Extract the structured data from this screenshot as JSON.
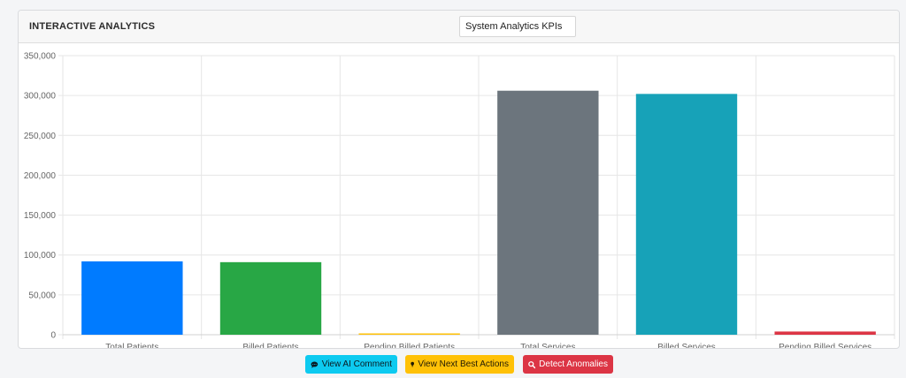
{
  "header": {
    "title": "INTERACTIVE ANALYTICS",
    "kpi_selector": {
      "selected": "System Analytics KPIs"
    }
  },
  "chart_data": {
    "type": "bar",
    "categories": [
      "Total Patients",
      "Billed Patients",
      "Pending Billed Patients",
      "Total Services",
      "Billed Services",
      "Pending Billed Services"
    ],
    "values": [
      92000,
      91000,
      800,
      306000,
      302000,
      4000
    ],
    "colors": [
      "#007bff",
      "#28a745",
      "#ffc107",
      "#6c757d",
      "#17a2b8",
      "#dc3545"
    ],
    "ylim": [
      0,
      350000
    ],
    "yticks": [
      0,
      50000,
      100000,
      150000,
      200000,
      250000,
      300000,
      350000
    ],
    "ytick_labels": [
      "0",
      "50,000",
      "100,000",
      "150,000",
      "200,000",
      "250,000",
      "300,000",
      "350,000"
    ],
    "grid": true,
    "legend": "none"
  },
  "actions": {
    "view_ai_comment": {
      "label": "View AI Comment",
      "icon": "comment-icon",
      "color": "#0dcaf0"
    },
    "view_next_best_actions": {
      "label": "View Next Best Actions",
      "icon": "lightbulb-icon",
      "color": "#ffc107"
    },
    "detect_anomalies": {
      "label": "Detect Anomalies",
      "icon": "search-icon",
      "color": "#dc3545"
    }
  }
}
